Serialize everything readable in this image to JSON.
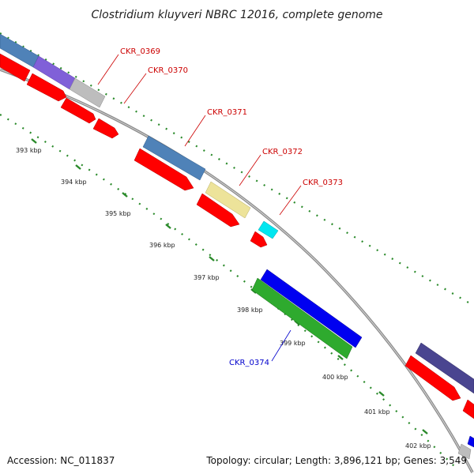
{
  "title": "Clostridium kluyveri NBRC 12016, complete genome",
  "footer": {
    "accession": "Accession: NC_011837",
    "topology": "Topology: circular; Length: 3,896,121 bp; Genes: 3,549"
  },
  "kbp_ticks": [
    "393 kbp",
    "394 kbp",
    "395 kbp",
    "396 kbp",
    "397 kbp",
    "398 kbp",
    "399 kbp",
    "400 kbp",
    "401 kbp",
    "402 kbp"
  ],
  "gene_labels": [
    {
      "id": "CKR_0369",
      "color": "red"
    },
    {
      "id": "CKR_0370",
      "color": "red"
    },
    {
      "id": "CKR_0371",
      "color": "red"
    },
    {
      "id": "CKR_0372",
      "color": "red"
    },
    {
      "id": "CKR_0373",
      "color": "red"
    },
    {
      "id": "CKR_0374",
      "color": "blue"
    }
  ],
  "colors": {
    "cds": "#ff0000",
    "steelblue": "#4f82b8",
    "purple": "#8060d8",
    "grey": "#bdbdbd",
    "khaki": "#ede39a",
    "cyan": "#00e6f0",
    "blue": "#0000f0",
    "green": "#2eaa2e",
    "darkpurple": "#4a4590",
    "backbone": "#8c8c8c",
    "tick": "#2a8a2a"
  }
}
